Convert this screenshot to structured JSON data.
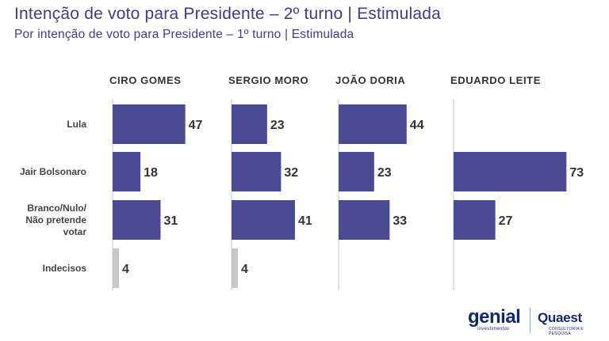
{
  "header": {
    "title": "Intenção de voto para Presidente – 2º turno | Estimulada",
    "subtitle": "Por intenção de voto para Presidente – 1º turno | Estimulada"
  },
  "colors": {
    "bar": "#4a4a92",
    "undecided_bar": "#c7c7c7",
    "title": "#3d3d8a",
    "axis_line": "#c8c8c8"
  },
  "chart_data": {
    "type": "bar",
    "orientation": "horizontal",
    "xlim": [
      0,
      80
    ],
    "rows": [
      "Lula",
      "Jair Bolsonaro",
      "Branco/Nulo/ Não pretende votar",
      "Indecisos"
    ],
    "row_label_lines": [
      [
        "Lula"
      ],
      [
        "Jair Bolsonaro"
      ],
      [
        "Branco/Nulo/",
        "Não pretende",
        "votar"
      ],
      [
        "Indecisos"
      ]
    ],
    "panels": [
      {
        "name": "CIRO GOMES",
        "values": [
          47,
          18,
          31,
          4
        ]
      },
      {
        "name": "SERGIO MORO",
        "values": [
          23,
          32,
          41,
          4
        ]
      },
      {
        "name": "JOÃO DORIA",
        "values": [
          44,
          23,
          33,
          null
        ]
      },
      {
        "name": "EDUARDO LEITE",
        "values": [
          null,
          73,
          27,
          null
        ]
      }
    ]
  },
  "logos": {
    "genial": "genial",
    "genial_sub": "investimentos",
    "quaest": "Quaest",
    "quaest_sub": "CONSULTORIA E PESQUISA"
  }
}
